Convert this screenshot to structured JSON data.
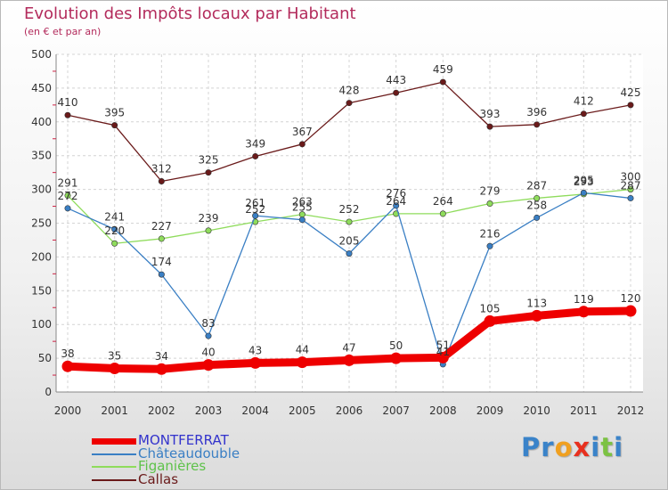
{
  "title": "Evolution des Impôts locaux par Habitant",
  "subtitle": "(en € et par an)",
  "logo": {
    "text": "Proxiti",
    "letters": [
      "P",
      "r",
      "o",
      "x",
      "i",
      "t",
      "i"
    ],
    "colors": [
      "#3a83c9",
      "#3a83c9",
      "#f0a020",
      "#e8301e",
      "#3a83c9",
      "#7cc243",
      "#3a83c9"
    ]
  },
  "chart_data": {
    "type": "line",
    "x": [
      "2000",
      "2001",
      "2002",
      "2003",
      "2004",
      "2005",
      "2006",
      "2007",
      "2008",
      "2009",
      "2010",
      "2011",
      "2012"
    ],
    "ylim": [
      0,
      500
    ],
    "yticks": [
      "0",
      "50",
      "100",
      "150",
      "200",
      "250",
      "300",
      "350",
      "400",
      "450",
      "500"
    ],
    "grid": true,
    "legend_position": "bottom-left",
    "series": [
      {
        "name": "MONTFERRAT",
        "color": "#ee0000",
        "label_color": "#3333cc",
        "values": [
          38,
          35,
          34,
          40,
          43,
          44,
          47,
          50,
          51,
          105,
          113,
          119,
          120
        ],
        "labels": [
          "38",
          "35",
          "34",
          "40",
          "43",
          "44",
          "47",
          "50",
          "51",
          "105",
          "113",
          "119",
          "120"
        ]
      },
      {
        "name": "Châteaudouble",
        "color": "#3a7fc4",
        "label_color": "#3a7fc4",
        "values": [
          272,
          241,
          174,
          83,
          261,
          255,
          205,
          276,
          41,
          216,
          258,
          295,
          287
        ],
        "labels": [
          "272",
          "241",
          "174",
          "83",
          "261",
          "255",
          "205",
          "276",
          "41",
          "216",
          "258",
          "295",
          "287"
        ]
      },
      {
        "name": "Figanières",
        "color": "#8fdc5c",
        "label_color": "#5ec24a",
        "values": [
          291,
          220,
          227,
          239,
          252,
          263,
          252,
          264,
          264,
          279,
          287,
          293,
          300
        ],
        "labels": [
          "291",
          "220",
          "227",
          "239",
          "252",
          "263",
          "252",
          "264",
          "264",
          "279",
          "287",
          "293",
          "300"
        ]
      },
      {
        "name": "Callas",
        "color": "#6a1a1a",
        "label_color": "#6a1a1a",
        "values": [
          410,
          395,
          312,
          325,
          349,
          367,
          428,
          443,
          459,
          393,
          396,
          412,
          425
        ],
        "labels": [
          "410",
          "395",
          "312",
          "325",
          "349",
          "367",
          "428",
          "443",
          "459",
          "393",
          "396",
          "412",
          "425"
        ]
      }
    ]
  }
}
